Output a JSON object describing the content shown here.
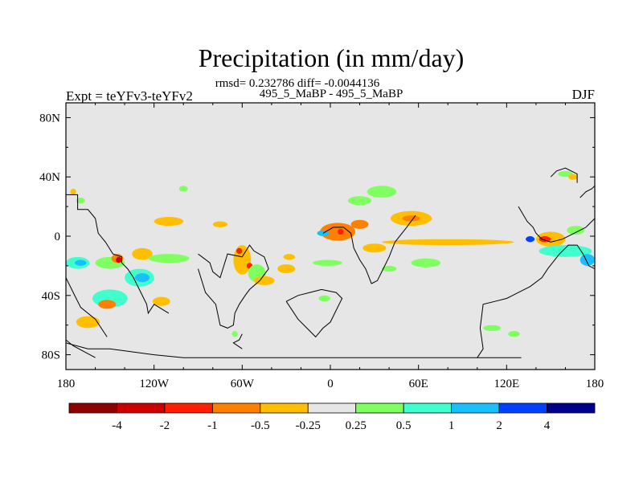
{
  "chart_data": {
    "type": "heatmap",
    "title": "Precipitation (in mm/day)",
    "stats_line": "rmsd= 0.232786 diff= -0.0044136",
    "subtitle": "495_5_MaBP - 495_5_MaBP",
    "left_label": "Expt = teYFv3-teYFv2",
    "right_label": "DJF",
    "x_range": [
      -180,
      180
    ],
    "y_range": [
      -90,
      90
    ],
    "x_ticks": [
      {
        "value": -180,
        "label": "180"
      },
      {
        "value": -120,
        "label": "120W"
      },
      {
        "value": -60,
        "label": "60W"
      },
      {
        "value": 0,
        "label": "0"
      },
      {
        "value": 60,
        "label": "60E"
      },
      {
        "value": 120,
        "label": "120E"
      },
      {
        "value": 180,
        "label": "180"
      }
    ],
    "y_ticks": [
      {
        "value": 80,
        "label": "80N"
      },
      {
        "value": 40,
        "label": "40N"
      },
      {
        "value": 0,
        "label": "0"
      },
      {
        "value": -40,
        "label": "40S"
      },
      {
        "value": -80,
        "label": "80S"
      }
    ],
    "background_color": "#e6e6e6",
    "colorbar": {
      "colors": [
        "#8b0000",
        "#cd0000",
        "#ff2000",
        "#ff7f00",
        "#ffbf00",
        "#e6e6e6",
        "#80ff60",
        "#40ffcc",
        "#1abfff",
        "#0040ff",
        "#00008b"
      ],
      "labels": [
        "-4",
        "-2",
        "-1",
        "-0.5",
        "-0.25",
        "0.25",
        "0.5",
        "1",
        "2",
        "4"
      ]
    },
    "anomaly_regions": [
      {
        "lon": -172,
        "lat": -18,
        "rlon": 8,
        "rlat": 4,
        "color": "#40ffcc"
      },
      {
        "lon": -170,
        "lat": -18,
        "rlon": 4,
        "rlat": 2,
        "color": "#1abfff"
      },
      {
        "lon": -150,
        "lat": -18,
        "rlon": 10,
        "rlat": 4,
        "color": "#80ff60"
      },
      {
        "lon": -145,
        "lat": -15,
        "rlon": 4,
        "rlat": 3,
        "color": "#ff7f00"
      },
      {
        "lon": -144,
        "lat": -16,
        "rlon": 2,
        "rlat": 2,
        "color": "#cd0000"
      },
      {
        "lon": -130,
        "lat": -28,
        "rlon": 10,
        "rlat": 6,
        "color": "#40ffcc"
      },
      {
        "lon": -128,
        "lat": -28,
        "rlon": 5,
        "rlat": 3,
        "color": "#1abfff"
      },
      {
        "lon": -150,
        "lat": -42,
        "rlon": 12,
        "rlat": 6,
        "color": "#40ffcc"
      },
      {
        "lon": -152,
        "lat": -46,
        "rlon": 6,
        "rlat": 3,
        "color": "#ff7f00"
      },
      {
        "lon": -165,
        "lat": -58,
        "rlon": 8,
        "rlat": 4,
        "color": "#ffbf00"
      },
      {
        "lon": -115,
        "lat": -44,
        "rlon": 6,
        "rlat": 3,
        "color": "#ffbf00"
      },
      {
        "lon": -128,
        "lat": -12,
        "rlon": 7,
        "rlat": 4,
        "color": "#ffbf00"
      },
      {
        "lon": -110,
        "lat": -15,
        "rlon": 14,
        "rlat": 3,
        "color": "#80ff60"
      },
      {
        "lon": -110,
        "lat": 10,
        "rlon": 10,
        "rlat": 3,
        "color": "#ffbf00"
      },
      {
        "lon": -75,
        "lat": 8,
        "rlon": 5,
        "rlat": 2,
        "color": "#ffbf00"
      },
      {
        "lon": -60,
        "lat": -16,
        "rlon": 6,
        "rlat": 10,
        "color": "#ffbf00"
      },
      {
        "lon": -62,
        "lat": -10,
        "rlon": 2,
        "rlat": 2,
        "color": "#ff2000"
      },
      {
        "lon": -55,
        "lat": -20,
        "rlon": 2,
        "rlat": 2,
        "color": "#ff2000"
      },
      {
        "lon": -50,
        "lat": -25,
        "rlon": 6,
        "rlat": 6,
        "color": "#80ff60"
      },
      {
        "lon": -45,
        "lat": -30,
        "rlon": 7,
        "rlat": 3,
        "color": "#ffbf00"
      },
      {
        "lon": -30,
        "lat": -22,
        "rlon": 6,
        "rlat": 3,
        "color": "#ffbf00"
      },
      {
        "lon": -28,
        "lat": -14,
        "rlon": 4,
        "rlat": 2,
        "color": "#ffbf00"
      },
      {
        "lon": -2,
        "lat": -18,
        "rlon": 10,
        "rlat": 2,
        "color": "#80ff60"
      },
      {
        "lon": 5,
        "lat": 3,
        "rlon": 12,
        "rlat": 6,
        "color": "#ff7f00"
      },
      {
        "lon": 7,
        "lat": 3,
        "rlon": 2,
        "rlat": 2,
        "color": "#ff2000"
      },
      {
        "lon": -5,
        "lat": 2,
        "rlon": 4,
        "rlat": 2,
        "color": "#1abfff"
      },
      {
        "lon": 20,
        "lat": 8,
        "rlon": 6,
        "rlat": 3,
        "color": "#ff7f00"
      },
      {
        "lon": 30,
        "lat": -8,
        "rlon": 8,
        "rlat": 3,
        "color": "#ffbf00"
      },
      {
        "lon": 20,
        "lat": 24,
        "rlon": 8,
        "rlat": 3,
        "color": "#80ff60"
      },
      {
        "lon": 35,
        "lat": 30,
        "rlon": 10,
        "rlat": 4,
        "color": "#80ff60"
      },
      {
        "lon": 55,
        "lat": 12,
        "rlon": 14,
        "rlat": 5,
        "color": "#ffbf00"
      },
      {
        "lon": 55,
        "lat": 12,
        "rlon": 6,
        "rlat": 2,
        "color": "#ff7f00"
      },
      {
        "lon": 80,
        "lat": -4,
        "rlon": 45,
        "rlat": 2,
        "color": "#ffbf00"
      },
      {
        "lon": 65,
        "lat": -18,
        "rlon": 10,
        "rlat": 3,
        "color": "#80ff60"
      },
      {
        "lon": 40,
        "lat": -22,
        "rlon": 5,
        "rlat": 2,
        "color": "#80ff60"
      },
      {
        "lon": -4,
        "lat": -42,
        "rlon": 4,
        "rlat": 2,
        "color": "#80ff60"
      },
      {
        "lon": 150,
        "lat": -2,
        "rlon": 10,
        "rlat": 5,
        "color": "#ffbf00"
      },
      {
        "lon": 146,
        "lat": -2,
        "rlon": 4,
        "rlat": 2,
        "color": "#ff2000"
      },
      {
        "lon": 136,
        "lat": -2,
        "rlon": 3,
        "rlat": 2,
        "color": "#0040ff"
      },
      {
        "lon": 160,
        "lat": -10,
        "rlon": 18,
        "rlat": 4,
        "color": "#40ffcc"
      },
      {
        "lon": 175,
        "lat": -16,
        "rlon": 5,
        "rlat": 4,
        "color": "#1abfff"
      },
      {
        "lon": 167,
        "lat": 4,
        "rlon": 6,
        "rlat": 3,
        "color": "#80ff60"
      },
      {
        "lon": 160,
        "lat": 42,
        "rlon": 5,
        "rlat": 2,
        "color": "#80ff60"
      },
      {
        "lon": 165,
        "lat": 40,
        "rlon": 3,
        "rlat": 2,
        "color": "#ffbf00"
      },
      {
        "lon": 110,
        "lat": -62,
        "rlon": 6,
        "rlat": 2,
        "color": "#80ff60"
      },
      {
        "lon": 125,
        "lat": -66,
        "rlon": 4,
        "rlat": 2,
        "color": "#80ff60"
      },
      {
        "lon": -65,
        "lat": -66,
        "rlon": 2,
        "rlat": 2,
        "color": "#80ff60"
      },
      {
        "lon": -100,
        "lat": 32,
        "rlon": 3,
        "rlat": 2,
        "color": "#80ff60"
      },
      {
        "lon": -170,
        "lat": 24,
        "rlon": 3,
        "rlat": 2,
        "color": "#80ff60"
      },
      {
        "lon": -175,
        "lat": 30,
        "rlon": 2,
        "rlat": 2,
        "color": "#ffbf00"
      }
    ],
    "coastlines": [
      [
        [
          -180,
          28
        ],
        [
          -172,
          28
        ],
        [
          -172,
          18
        ],
        [
          -165,
          18
        ],
        [
          -160,
          12
        ],
        [
          -158,
          2
        ],
        [
          -153,
          -4
        ],
        [
          -148,
          -12
        ],
        [
          -142,
          -14
        ],
        [
          -142,
          -18
        ],
        [
          -138,
          -22
        ],
        [
          -134,
          -28
        ],
        [
          -130,
          -36
        ],
        [
          -125,
          -46
        ],
        [
          -124,
          -52
        ],
        [
          -120,
          -46
        ],
        [
          -110,
          -52
        ]
      ],
      [
        [
          -180,
          -28
        ],
        [
          -175,
          -38
        ],
        [
          -170,
          -48
        ],
        [
          -160,
          -56
        ],
        [
          -152,
          -68
        ]
      ],
      [
        [
          -90,
          -12
        ],
        [
          -82,
          -18
        ],
        [
          -80,
          -24
        ],
        [
          -75,
          -28
        ],
        [
          -70,
          -12
        ],
        [
          -60,
          -14
        ],
        [
          -55,
          -6
        ],
        [
          -52,
          -10
        ],
        [
          -45,
          -14
        ],
        [
          -42,
          -22
        ],
        [
          -48,
          -30
        ],
        [
          -55,
          -36
        ],
        [
          -58,
          -40
        ],
        [
          -62,
          -46
        ],
        [
          -65,
          -52
        ],
        [
          -66,
          -60
        ],
        [
          -70,
          -62
        ],
        [
          -75,
          -60
        ],
        [
          -78,
          -46
        ],
        [
          -85,
          -38
        ],
        [
          -90,
          -22
        ]
      ],
      [
        [
          -5,
          2
        ],
        [
          2,
          6
        ],
        [
          9,
          6
        ],
        [
          14,
          2
        ],
        [
          16,
          -8
        ],
        [
          20,
          -16
        ],
        [
          24,
          -22
        ],
        [
          28,
          -32
        ],
        [
          32,
          -30
        ],
        [
          36,
          -22
        ],
        [
          40,
          -14
        ],
        [
          44,
          -4
        ],
        [
          52,
          6
        ],
        [
          58,
          14
        ]
      ],
      [
        [
          -30,
          -44
        ],
        [
          -26,
          -50
        ],
        [
          -22,
          -56
        ],
        [
          -16,
          -62
        ],
        [
          -10,
          -68
        ],
        [
          -5,
          -62
        ],
        [
          0,
          -58
        ],
        [
          5,
          -48
        ],
        [
          8,
          -42
        ],
        [
          4,
          -38
        ],
        [
          -6,
          -36
        ],
        [
          -14,
          -38
        ],
        [
          -22,
          -40
        ],
        [
          -30,
          -44
        ]
      ],
      [
        [
          100,
          -82
        ],
        [
          104,
          -76
        ],
        [
          102,
          -62
        ],
        [
          104,
          -46
        ],
        [
          112,
          -44
        ],
        [
          120,
          -42
        ],
        [
          128,
          -38
        ],
        [
          136,
          -34
        ],
        [
          144,
          -28
        ],
        [
          148,
          -22
        ],
        [
          156,
          -12
        ],
        [
          162,
          -6
        ],
        [
          168,
          -6
        ],
        [
          172,
          -12
        ],
        [
          176,
          -20
        ],
        [
          180,
          -22
        ]
      ],
      [
        [
          128,
          20
        ],
        [
          134,
          10
        ],
        [
          138,
          6
        ],
        [
          140,
          2
        ],
        [
          144,
          -2
        ],
        [
          150,
          -4
        ],
        [
          158,
          -2
        ],
        [
          166,
          2
        ],
        [
          174,
          6
        ],
        [
          180,
          12
        ]
      ],
      [
        [
          150,
          40
        ],
        [
          154,
          44
        ],
        [
          160,
          46
        ],
        [
          168,
          42
        ],
        [
          168,
          36
        ]
      ],
      [
        [
          170,
          26
        ],
        [
          174,
          30
        ],
        [
          178,
          32
        ],
        [
          180,
          34
        ]
      ],
      [
        [
          -180,
          -72
        ],
        [
          -165,
          -76
        ],
        [
          -150,
          -76
        ],
        [
          -120,
          -80
        ],
        [
          -100,
          -82
        ],
        [
          -60,
          -82
        ],
        [
          -20,
          -82
        ],
        [
          20,
          -82
        ],
        [
          60,
          -82
        ],
        [
          100,
          -82
        ],
        [
          130,
          -82
        ]
      ],
      [
        [
          -160,
          -82
        ],
        [
          -175,
          -74
        ],
        [
          -180,
          -70
        ]
      ],
      [
        [
          -60,
          -66
        ],
        [
          -62,
          -70
        ],
        [
          -66,
          -72
        ],
        [
          -60,
          -76
        ]
      ]
    ]
  }
}
